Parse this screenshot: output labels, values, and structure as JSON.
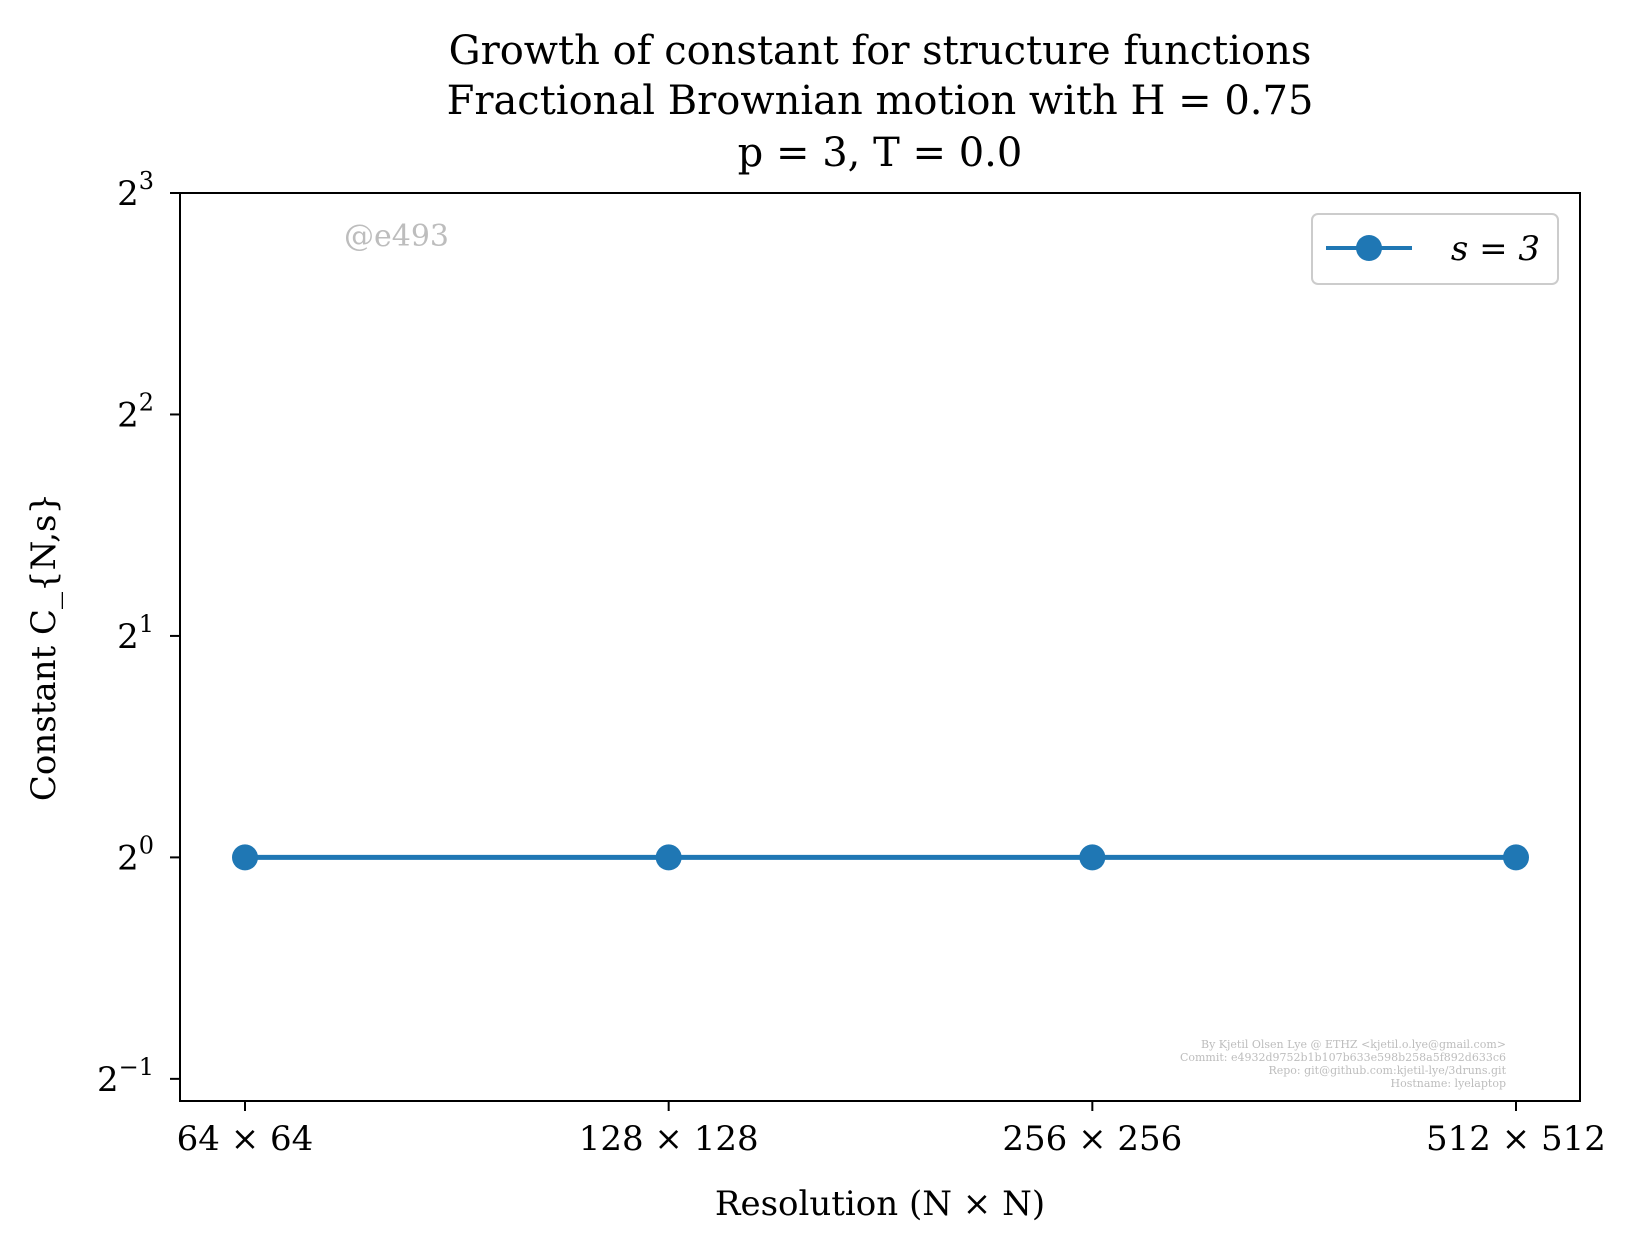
{
  "chart_data": {
    "type": "line",
    "title_lines": [
      "Growth of constant for structure functions",
      "Fractional Brownian motion with H = 0.75",
      "p = 3, T = 0.0"
    ],
    "xlabel": "Resolution (N × N)",
    "ylabel": "Constant C_{N,s}",
    "categories": [
      "64 × 64",
      "128 × 128",
      "256 × 256",
      "512 × 512"
    ],
    "y_scale": "log2",
    "ylim_log2": [
      -1.1,
      3
    ],
    "y_ticks": [
      {
        "exp": -1,
        "base": "2",
        "sup": "−1"
      },
      {
        "exp": 0,
        "base": "2",
        "sup": "0"
      },
      {
        "exp": 1,
        "base": "2",
        "sup": "1"
      },
      {
        "exp": 2,
        "base": "2",
        "sup": "2"
      },
      {
        "exp": 3,
        "base": "2",
        "sup": "3"
      }
    ],
    "series": [
      {
        "name": "s = 3",
        "color": "#1f77b4",
        "values": [
          1,
          1,
          1,
          1
        ]
      }
    ],
    "legend_position": "top-right",
    "grid": false
  },
  "watermark": "@e493",
  "credits": [
    "By Kjetil Olsen Lye @ ETHZ <kjetil.o.lye@gmail.com>",
    "Commit: e4932d9752b1b107b633e598b258a5f892d633c6",
    "Repo: git@github.com:kjetil-lye/3druns.git",
    "Hostname: lyelaptop"
  ]
}
